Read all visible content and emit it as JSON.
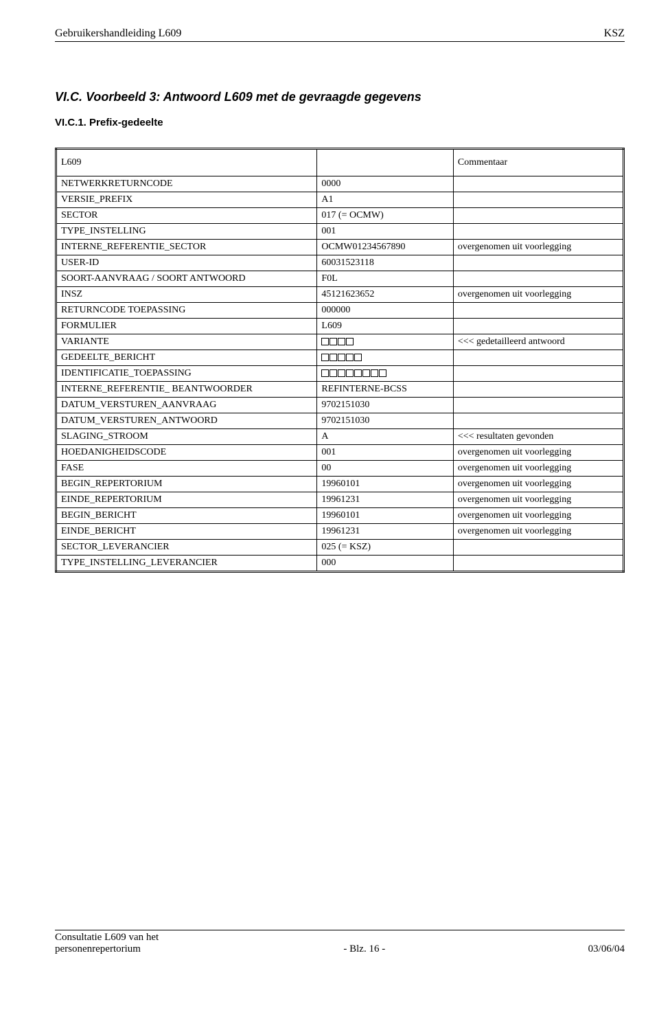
{
  "header": {
    "left": "Gebruikershandleiding L609",
    "right": "KSZ"
  },
  "section": {
    "heading": "VI.C.  Voorbeeld 3: Antwoord  L609  met de gevraagde gegevens",
    "subheading": "VI.C.1.    Prefix-gedeelte"
  },
  "title_row": {
    "label": "L609",
    "commentaar": "Commentaar"
  },
  "rows": [
    {
      "a": "NETWERKRETURNCODE",
      "b": "0000",
      "c": ""
    },
    {
      "a": "VERSIE_PREFIX",
      "b": "A1",
      "c": ""
    },
    {
      "a": "SECTOR",
      "b": "017 (= OCMW)",
      "c": ""
    },
    {
      "a": "TYPE_INSTELLING",
      "b": "001",
      "c": ""
    },
    {
      "a": "INTERNE_REFERENTIE_SECTOR",
      "b": "OCMW01234567890",
      "c": "overgenomen uit voorlegging"
    },
    {
      "a": "USER-ID",
      "b": "60031523118",
      "c": ""
    },
    {
      "a": "SOORT-AANVRAAG / SOORT ANTWOORD",
      "b": "F0L",
      "c": ""
    },
    {
      "a": "INSZ",
      "b": "45121623652",
      "c": "overgenomen uit voorlegging"
    },
    {
      "a": "RETURNCODE TOEPASSING",
      "b": "000000",
      "c": ""
    },
    {
      "a": "FORMULIER",
      "b": "L609",
      "c": ""
    },
    {
      "a": "VARIANTE",
      "boxes": 4,
      "c": "<<< gedetailleerd antwoord"
    },
    {
      "a": "GEDEELTE_BERICHT",
      "boxes": 5,
      "c": ""
    },
    {
      "a": "IDENTIFICATIE_TOEPASSING",
      "boxes": 8,
      "c": ""
    },
    {
      "a": "INTERNE_REFERENTIE_ BEANTWOORDER",
      "b": "REFINTERNE-BCSS",
      "c": ""
    },
    {
      "a": "DATUM_VERSTUREN_AANVRAAG",
      "b": "9702151030",
      "c": ""
    },
    {
      "a": "DATUM_VERSTUREN_ANTWOORD",
      "b": "9702151030",
      "c": ""
    },
    {
      "a": "SLAGING_STROOM",
      "b": "A",
      "c": "<<< resultaten gevonden",
      "small": true
    },
    {
      "a": "HOEDANIGHEIDSCODE",
      "b": "001",
      "c": "overgenomen uit voorlegging"
    },
    {
      "a": "FASE",
      "b": "00",
      "c": "overgenomen uit voorlegging"
    },
    {
      "a": "BEGIN_REPERTORIUM",
      "b": "19960101",
      "c": "overgenomen uit voorlegging"
    },
    {
      "a": "EINDE_REPERTORIUM",
      "b": "19961231",
      "c": "overgenomen uit voorlegging"
    },
    {
      "a": "BEGIN_BERICHT",
      "b": "19960101",
      "c": "overgenomen uit voorlegging"
    },
    {
      "a": "EINDE_BERICHT",
      "b": "19961231",
      "c": "overgenomen uit voorlegging"
    },
    {
      "a": "SECTOR_LEVERANCIER",
      "b": "025 (= KSZ)",
      "c": ""
    },
    {
      "a": "TYPE_INSTELLING_LEVERANCIER",
      "b": "000",
      "c": ""
    }
  ],
  "footer": {
    "left_line1": "Consultatie L609 van het",
    "left_line2": "personenrepertorium",
    "center": "- Blz. 16 -",
    "right": "03/06/04"
  }
}
